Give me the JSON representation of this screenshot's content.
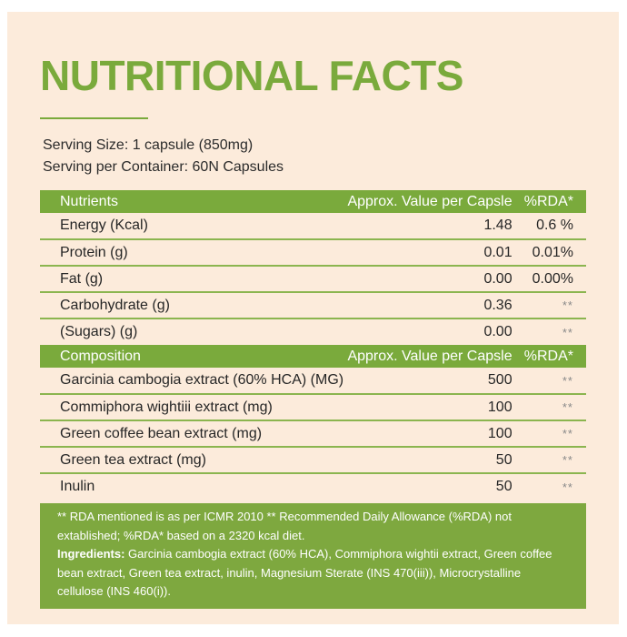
{
  "title": "NUTRITIONAL FACTS",
  "serving": {
    "size": "Serving Size: 1 capsule (850mg)",
    "per_container": "Serving per Container: 60N Capsules"
  },
  "colors": {
    "accent_green": "#7aaa3c",
    "panel_bg": "#fcebdb",
    "footer_bg": "#7ea83f"
  },
  "nutrients": {
    "header": {
      "name": "Nutrients",
      "value": "Approx. Value per Capsle",
      "rda": "%RDA*"
    },
    "rows": [
      {
        "name": "Energy (Kcal)",
        "value": "1.48",
        "rda": "0.6 %"
      },
      {
        "name": "Protein (g)",
        "value": "0.01",
        "rda": "0.01%"
      },
      {
        "name": "Fat (g)",
        "value": "0.00",
        "rda": "0.00%"
      },
      {
        "name": "Carbohydrate (g)",
        "value": "0.36",
        "rda": "**"
      },
      {
        "name": "(Sugars) (g)",
        "value": "0.00",
        "rda": "**"
      }
    ]
  },
  "composition": {
    "header": {
      "name": "Composition",
      "value": "Approx. Value per Capsle",
      "rda": "%RDA*"
    },
    "rows": [
      {
        "name": "Garcinia cambogia extract (60% HCA) (MG)",
        "value": "500",
        "rda": "**"
      },
      {
        "name": "Commiphora wightiii extract (mg)",
        "value": "100",
        "rda": "**"
      },
      {
        "name": "Green coffee bean extract (mg)",
        "value": "100",
        "rda": "**"
      },
      {
        "name": "Green tea extract (mg)",
        "value": "50",
        "rda": "**"
      },
      {
        "name": "Inulin",
        "value": "50",
        "rda": "**"
      }
    ]
  },
  "footer": {
    "rda_note": "** RDA mentioned is as per ICMR 2010 ** Recommended Daily Allowance (%RDA) not extablished; %RDA* based on a 2320 kcal diet.",
    "ingredients_label": "Ingredients:",
    "ingredients_text": " Garcinia cambogia extract (60% HCA), Commiphora wightii extract, Green coffee bean extract, Green tea extract, inulin, Magnesium Sterate (INS 470(iii)), Microcrystalline cellulose (INS 460(i))."
  }
}
